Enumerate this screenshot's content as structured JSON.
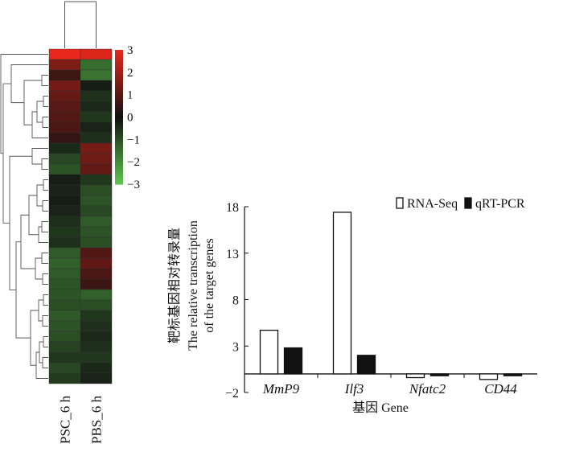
{
  "chart_data": [
    {
      "type": "heatmap",
      "columns": [
        "PSC_6 h",
        "PBS_6 h"
      ],
      "color_scale": {
        "min": -3,
        "max": 3,
        "ticks": [
          "3",
          "2",
          "1",
          "0",
          "−1",
          "−2",
          "−3"
        ],
        "low_color": "#5ec84e",
        "mid_color": "#111111",
        "high_color": "#e8281c"
      },
      "rows": [
        [
          3,
          2.8
        ],
        [
          1.5,
          -1.5
        ],
        [
          0.6,
          -1.6
        ],
        [
          1.4,
          -0.2
        ],
        [
          1.2,
          -0.5
        ],
        [
          1.0,
          -0.4
        ],
        [
          0.9,
          -0.6
        ],
        [
          0.8,
          -0.3
        ],
        [
          0.5,
          -0.5
        ],
        [
          -0.4,
          1.4
        ],
        [
          -0.9,
          1.3
        ],
        [
          -1.1,
          1.1
        ],
        [
          -0.2,
          -0.6
        ],
        [
          -0.3,
          -1.0
        ],
        [
          -0.2,
          -1.1
        ],
        [
          -0.3,
          -0.9
        ],
        [
          -0.5,
          -1.2
        ],
        [
          -0.6,
          -1.1
        ],
        [
          -0.5,
          -1.0
        ],
        [
          -1.2,
          0.9
        ],
        [
          -1.3,
          1.1
        ],
        [
          -1.2,
          0.8
        ],
        [
          -1.1,
          0.6
        ],
        [
          -1.1,
          -1.3
        ],
        [
          -1.0,
          -1.0
        ],
        [
          -1.2,
          -0.6
        ],
        [
          -1.1,
          -0.5
        ],
        [
          -1.0,
          -0.4
        ],
        [
          -0.8,
          -0.5
        ],
        [
          -0.6,
          -0.6
        ],
        [
          -0.9,
          -0.4
        ],
        [
          -0.7,
          -0.3
        ]
      ]
    },
    {
      "type": "bar",
      "categories": [
        "MmP9",
        "Ilf3",
        "Nfatc2",
        "CD44"
      ],
      "series": [
        {
          "name": "RNA-Seq",
          "values": [
            4.7,
            17.4,
            -0.4,
            -0.6
          ],
          "color": "#ffffff",
          "edge": "#111111"
        },
        {
          "name": "qRT-PCR",
          "values": [
            2.8,
            2.0,
            -0.2,
            -0.2
          ],
          "color": "#111111",
          "edge": "#111111"
        }
      ],
      "ylabel_cn": "靶标基因相对转录量",
      "ylabel_en_1": "The relative transcription",
      "ylabel_en_2": "of the target genes",
      "xlabel": "基因  Gene",
      "ylim": [
        -2,
        18
      ],
      "yticks": [
        18,
        13,
        8,
        3,
        -2
      ],
      "legend": "top-right"
    }
  ]
}
